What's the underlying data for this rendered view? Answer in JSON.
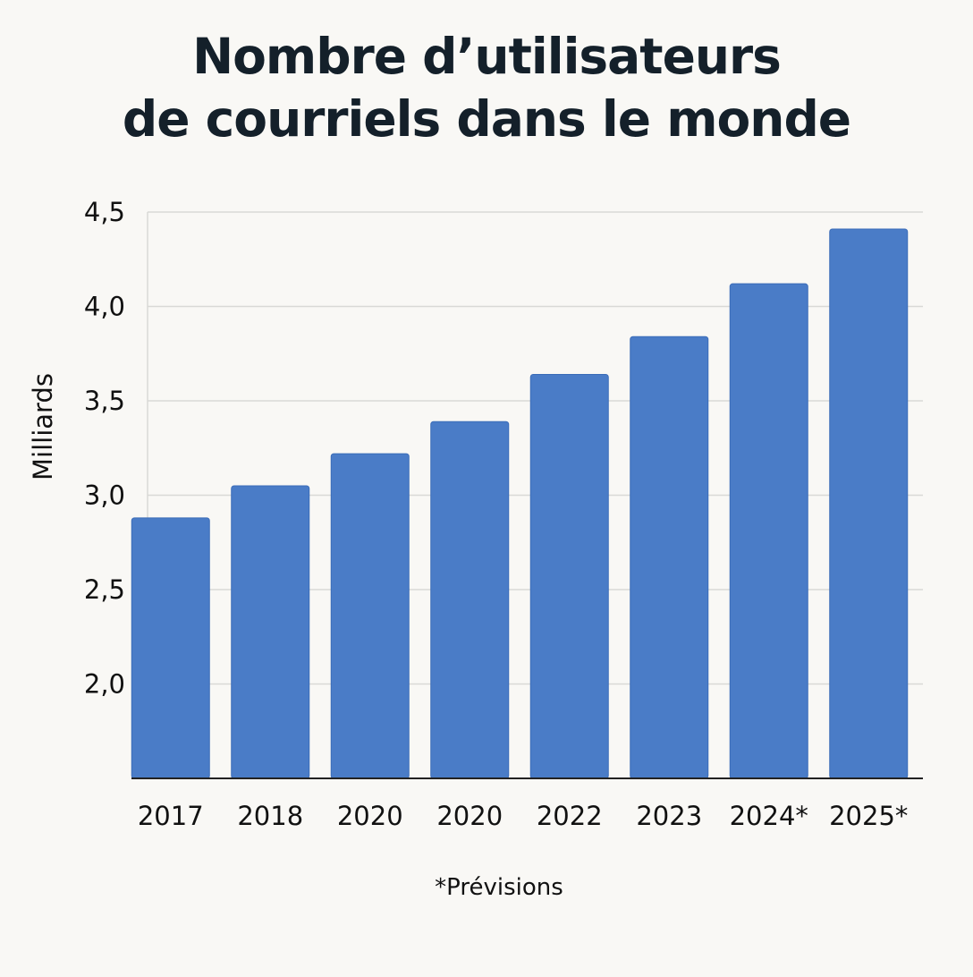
{
  "chart_data": {
    "type": "bar",
    "title": [
      "Nombre d’utilisateurs",
      "de courriels dans le monde"
    ],
    "xlabel": "",
    "ylabel": "Milliards",
    "categories": [
      "2017",
      "2018",
      "2020",
      "2020",
      "2022",
      "2023",
      "2024*",
      "2025*"
    ],
    "values": [
      2.88,
      3.05,
      3.22,
      3.39,
      3.64,
      3.84,
      4.12,
      4.41
    ],
    "ylim": [
      1.5,
      4.5
    ],
    "yticks": [
      "2,0",
      "2,5",
      "3,0",
      "3,5",
      "4,0",
      "4,5"
    ],
    "ytick_values": [
      2.0,
      2.5,
      3.0,
      3.5,
      4.0,
      4.5
    ],
    "grid": true,
    "bar_color": "#4a7cc7",
    "footnote": "*Prévisions"
  }
}
